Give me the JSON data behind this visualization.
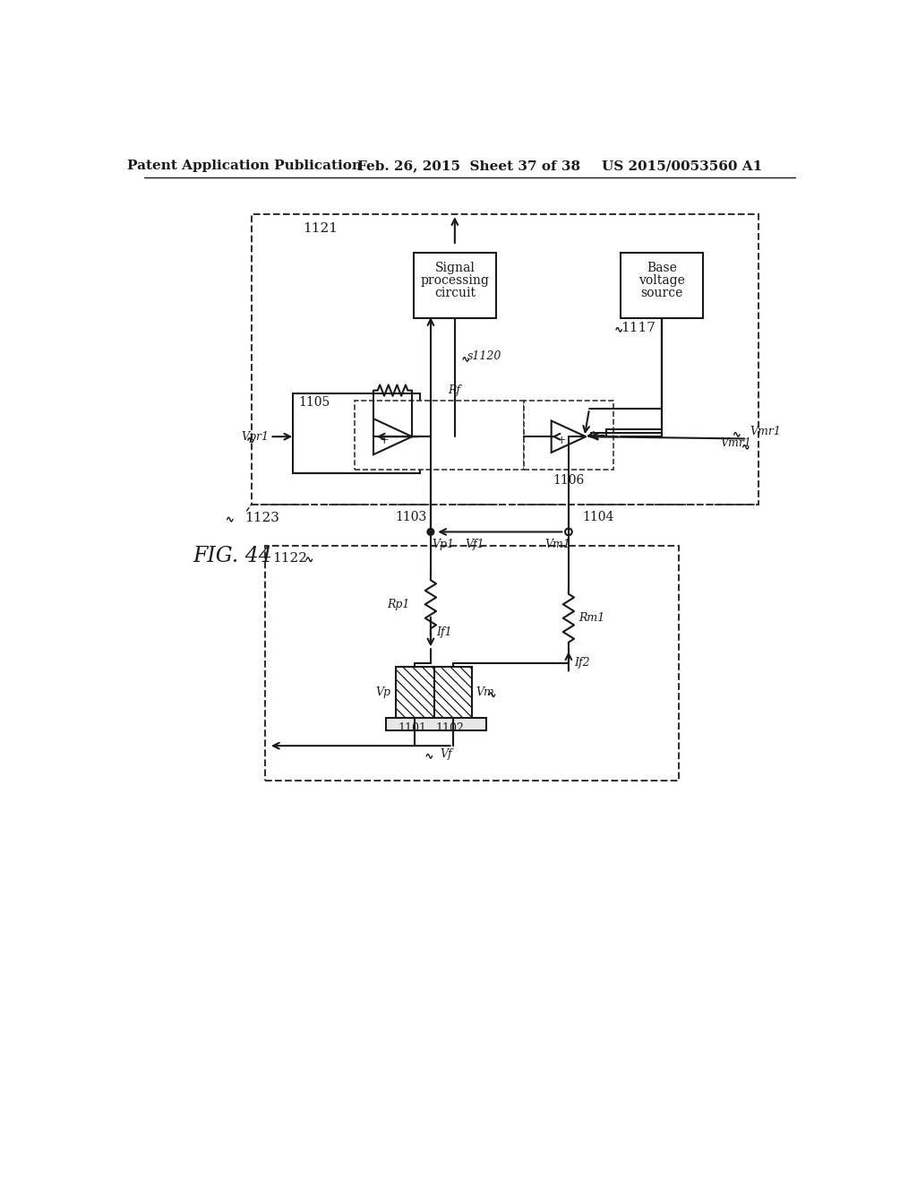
{
  "header_left": "Patent Application Publication",
  "header_mid": "Feb. 26, 2015  Sheet 37 of 38",
  "header_right": "US 2015/0053560 A1",
  "bg_color": "#ffffff",
  "line_color": "#1a1a1a",
  "dashed_color": "#333333"
}
